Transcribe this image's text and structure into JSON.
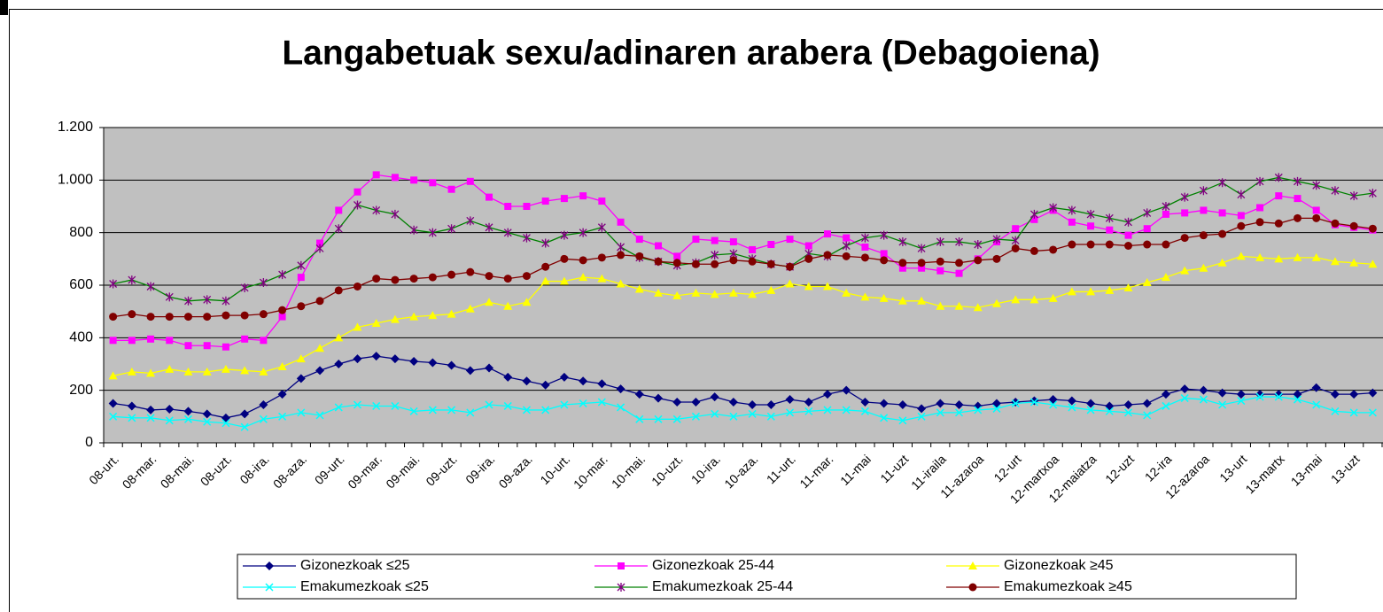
{
  "chart_data": {
    "type": "line",
    "title": "Langabetuak sexu/adinaren arabera (Debagoiena)",
    "categories": [
      "08-urt.",
      null,
      "08-mar.",
      null,
      "08-mai.",
      null,
      "08-uzt.",
      null,
      "08-ira.",
      null,
      "08-aza.",
      null,
      "09-urt.",
      null,
      "09-mar.",
      null,
      "09-mai.",
      null,
      "09-uzt.",
      null,
      "09-ira.",
      null,
      "09-aza.",
      null,
      "10-urt.",
      null,
      "10-mar.",
      null,
      "10-mai.",
      null,
      "10-uzt.",
      null,
      "10-ira.",
      null,
      "10-aza.",
      null,
      "11-urt.",
      null,
      "11-mar.",
      null,
      "11-mai",
      null,
      "11-uzt",
      null,
      "11-iraila",
      null,
      "11-azaroa",
      null,
      "12-urt",
      null,
      "12-martxoa",
      null,
      "12-maiatza",
      null,
      "12-uzt",
      null,
      "12-ira",
      null,
      "12-azaroa",
      null,
      "13-urt",
      null,
      "13-martx",
      null,
      "13-mai",
      null,
      "13-uzt",
      null
    ],
    "ylim": [
      0,
      1200
    ],
    "yticks": [
      0,
      200,
      400,
      600,
      800,
      {
        "value": 1000,
        "label": "1.000"
      },
      {
        "value": 1200,
        "label": "1.200"
      }
    ],
    "grid": true,
    "series": [
      {
        "name": "Gizonezkoak ≤25",
        "color": "#000080",
        "marker": "diamond",
        "values": [
          150,
          140,
          125,
          128,
          120,
          110,
          95,
          110,
          145,
          185,
          245,
          275,
          300,
          320,
          330,
          320,
          310,
          305,
          295,
          275,
          285,
          250,
          235,
          220,
          250,
          235,
          225,
          205,
          185,
          170,
          155,
          155,
          175,
          155,
          145,
          145,
          165,
          155,
          185,
          200,
          155,
          150,
          145,
          130,
          150,
          145,
          140,
          150,
          155,
          160,
          165,
          160,
          150,
          140,
          145,
          150,
          185,
          205,
          200,
          190,
          185,
          185,
          185,
          185,
          210,
          185,
          185,
          190
        ]
      },
      {
        "name": "Gizonezkoak 25-44",
        "color": "#ff00ff",
        "marker": "square",
        "values": [
          390,
          390,
          395,
          390,
          370,
          370,
          365,
          395,
          390,
          480,
          630,
          760,
          885,
          955,
          1020,
          1010,
          1000,
          990,
          965,
          995,
          935,
          900,
          900,
          920,
          930,
          940,
          920,
          840,
          775,
          750,
          710,
          775,
          770,
          765,
          735,
          755,
          775,
          750,
          795,
          780,
          745,
          720,
          665,
          665,
          655,
          645,
          700,
          765,
          815,
          850,
          885,
          840,
          825,
          810,
          790,
          815,
          870,
          875,
          885,
          875,
          865,
          895,
          940,
          930,
          885,
          830,
          820,
          810
        ]
      },
      {
        "name": "Gizonezkoak ≥45",
        "color": "#ffff00",
        "marker": "triangle",
        "values": [
          255,
          270,
          265,
          280,
          270,
          270,
          280,
          275,
          270,
          290,
          320,
          360,
          400,
          440,
          455,
          470,
          480,
          485,
          490,
          510,
          535,
          520,
          535,
          615,
          615,
          630,
          625,
          605,
          585,
          570,
          560,
          570,
          565,
          570,
          565,
          580,
          605,
          595,
          595,
          570,
          555,
          550,
          540,
          540,
          520,
          520,
          515,
          530,
          545,
          545,
          550,
          575,
          575,
          580,
          590,
          610,
          630,
          655,
          665,
          685,
          710,
          705,
          700,
          705,
          705,
          690,
          685,
          680
        ]
      },
      {
        "name": "Emakumezkoak ≤25",
        "color": "#00ffff",
        "marker": "x",
        "values": [
          100,
          95,
          95,
          85,
          90,
          80,
          75,
          60,
          90,
          100,
          115,
          105,
          135,
          145,
          140,
          140,
          120,
          125,
          125,
          115,
          145,
          140,
          125,
          125,
          145,
          150,
          155,
          135,
          90,
          90,
          90,
          100,
          110,
          100,
          110,
          100,
          115,
          120,
          125,
          125,
          120,
          95,
          85,
          100,
          115,
          115,
          125,
          130,
          150,
          155,
          145,
          135,
          125,
          120,
          115,
          105,
          140,
          170,
          165,
          145,
          160,
          175,
          175,
          165,
          145,
          120,
          115,
          115
        ]
      },
      {
        "name": "Emakumezkoak 25-44",
        "color": "#008000",
        "marker": "asterisk",
        "values": [
          605,
          620,
          595,
          555,
          540,
          545,
          540,
          590,
          610,
          640,
          675,
          740,
          815,
          905,
          885,
          870,
          810,
          800,
          815,
          845,
          820,
          800,
          780,
          760,
          790,
          800,
          820,
          745,
          705,
          690,
          675,
          685,
          715,
          720,
          700,
          680,
          670,
          720,
          710,
          750,
          780,
          790,
          765,
          740,
          765,
          765,
          755,
          775,
          770,
          870,
          895,
          885,
          870,
          855,
          840,
          875,
          900,
          935,
          960,
          990,
          945,
          995,
          1010,
          995,
          980,
          960,
          940,
          950
        ]
      },
      {
        "name": "Emakumezkoak ≥45",
        "color": "#800000",
        "marker": "circle",
        "values": [
          480,
          490,
          480,
          480,
          480,
          480,
          485,
          485,
          490,
          505,
          520,
          540,
          580,
          595,
          625,
          620,
          625,
          630,
          640,
          650,
          635,
          625,
          635,
          670,
          700,
          695,
          705,
          715,
          710,
          690,
          685,
          680,
          680,
          695,
          690,
          680,
          670,
          700,
          715,
          710,
          705,
          695,
          685,
          685,
          690,
          685,
          695,
          700,
          740,
          730,
          735,
          755,
          755,
          755,
          750,
          755,
          755,
          780,
          790,
          795,
          825,
          840,
          835,
          855,
          855,
          835,
          825,
          815
        ]
      }
    ]
  }
}
